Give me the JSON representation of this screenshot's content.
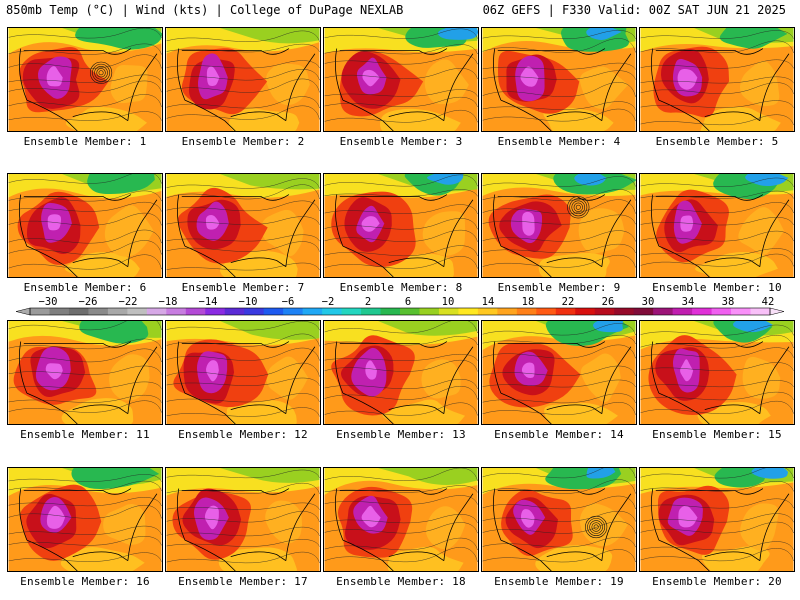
{
  "header": {
    "left_title": "850mb Temp (°C) | Wind (kts) | College of DuPage NEXLAB",
    "right_title": "06Z GEFS | F330 Valid: 00Z SAT JUN 21 2025"
  },
  "colorbar": {
    "labels": [
      "−30",
      "−26",
      "−22",
      "−18",
      "−14",
      "−10",
      "−6",
      "−2",
      "2",
      "6",
      "10",
      "14",
      "18",
      "22",
      "26",
      "30",
      "34",
      "38",
      "42"
    ],
    "colors": [
      "#9a9a9a",
      "#7f7f7f",
      "#6e6e6e",
      "#8a8a8a",
      "#a8a8a8",
      "#bfbfbf",
      "#d6a8e6",
      "#c77de0",
      "#b34ad6",
      "#8a2be2",
      "#5b2bd6",
      "#3a3ae0",
      "#1e5af0",
      "#1e82f5",
      "#20a8f5",
      "#22c8e8",
      "#24d6c0",
      "#20c890",
      "#28b850",
      "#58c030",
      "#98d020",
      "#d8e020",
      "#ffe820",
      "#ffc820",
      "#ffa41e",
      "#ff8018",
      "#ff5a14",
      "#f03010",
      "#d8100e",
      "#b80c1e",
      "#960a2a",
      "#800c3a",
      "#9c1478",
      "#c01eb0",
      "#e030d8",
      "#f060f0",
      "#f890f8",
      "#f8c0f8"
    ]
  },
  "members": [
    {
      "caption": "Ensemble Member: 1",
      "low": true
    },
    {
      "caption": "Ensemble Member: 2",
      "low": false
    },
    {
      "caption": "Ensemble Member: 3",
      "low": false
    },
    {
      "caption": "Ensemble Member: 4",
      "low": false
    },
    {
      "caption": "Ensemble Member: 5",
      "low": false
    },
    {
      "caption": "Ensemble Member: 6",
      "low": false
    },
    {
      "caption": "Ensemble Member: 7",
      "low": false
    },
    {
      "caption": "Ensemble Member: 8",
      "low": false
    },
    {
      "caption": "Ensemble Member: 9",
      "low": true
    },
    {
      "caption": "Ensemble Member: 10",
      "low": false
    },
    {
      "caption": "Ensemble Member: 11",
      "low": false
    },
    {
      "caption": "Ensemble Member: 12",
      "low": false
    },
    {
      "caption": "Ensemble Member: 13",
      "low": false
    },
    {
      "caption": "Ensemble Member: 14",
      "low": false
    },
    {
      "caption": "Ensemble Member: 15",
      "low": false
    },
    {
      "caption": "Ensemble Member: 16",
      "low": false
    },
    {
      "caption": "Ensemble Member: 17",
      "low": false
    },
    {
      "caption": "Ensemble Member: 18",
      "low": false
    },
    {
      "caption": "Ensemble Member: 19",
      "low": true
    },
    {
      "caption": "Ensemble Member: 20",
      "low": false
    }
  ]
}
